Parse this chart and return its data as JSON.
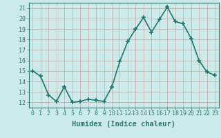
{
  "x": [
    0,
    1,
    2,
    3,
    4,
    5,
    6,
    7,
    8,
    9,
    10,
    11,
    12,
    13,
    14,
    15,
    16,
    17,
    18,
    19,
    20,
    21,
    22,
    23
  ],
  "y": [
    15.0,
    14.5,
    12.7,
    12.1,
    13.5,
    12.0,
    12.1,
    12.3,
    12.2,
    12.1,
    13.5,
    15.9,
    17.8,
    19.0,
    20.1,
    18.7,
    19.9,
    21.1,
    19.7,
    19.5,
    18.1,
    16.0,
    14.9,
    14.6
  ],
  "line_color": "#1a7a6a",
  "marker": "+",
  "markersize": 4,
  "bg_color": "#cceae7",
  "grid_color": "#b0d8d4",
  "xlabel": "Humidex (Indice chaleur)",
  "xlim": [
    -0.5,
    23.5
  ],
  "ylim": [
    11.5,
    21.5
  ],
  "yticks": [
    12,
    13,
    14,
    15,
    16,
    17,
    18,
    19,
    20,
    21
  ],
  "xticks": [
    0,
    1,
    2,
    3,
    4,
    5,
    6,
    7,
    8,
    9,
    10,
    11,
    12,
    13,
    14,
    15,
    16,
    17,
    18,
    19,
    20,
    21,
    22,
    23
  ],
  "tick_fontsize": 6,
  "xlabel_fontsize": 7.5,
  "linewidth": 1.2,
  "spine_color": "#2a7a6a"
}
